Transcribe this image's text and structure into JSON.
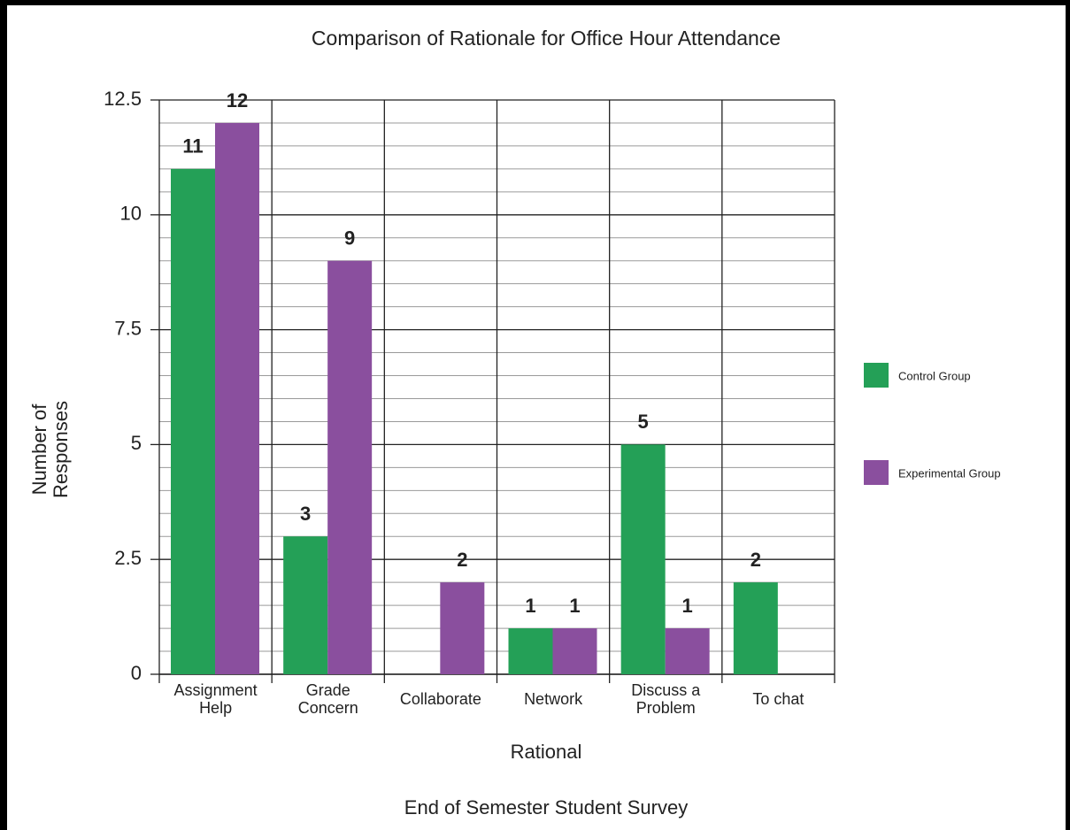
{
  "chart_data": {
    "type": "bar",
    "title": "Comparison of Rationale for Office Hour Attendance",
    "subtitle": "End of Semester Student Survey",
    "x_label": "Rational",
    "y_label": "Number of\nResponses",
    "categories": [
      "Assignment\nHelp",
      "Grade\nConcern",
      "Collaborate",
      "Network",
      "Discuss a\nProblem",
      "To chat"
    ],
    "series": [
      {
        "name": "Control Group",
        "color": "#24a057",
        "values": [
          11,
          3,
          0,
          1,
          5,
          2
        ]
      },
      {
        "name": "Experimental Group",
        "color": "#8a4f9e",
        "values": [
          12,
          9,
          2,
          1,
          1,
          0
        ]
      }
    ],
    "ylim": [
      0,
      12.5
    ],
    "yticks": [
      0,
      2.5,
      5,
      7.5,
      10,
      12.5
    ],
    "grid": true,
    "legend": "right"
  }
}
